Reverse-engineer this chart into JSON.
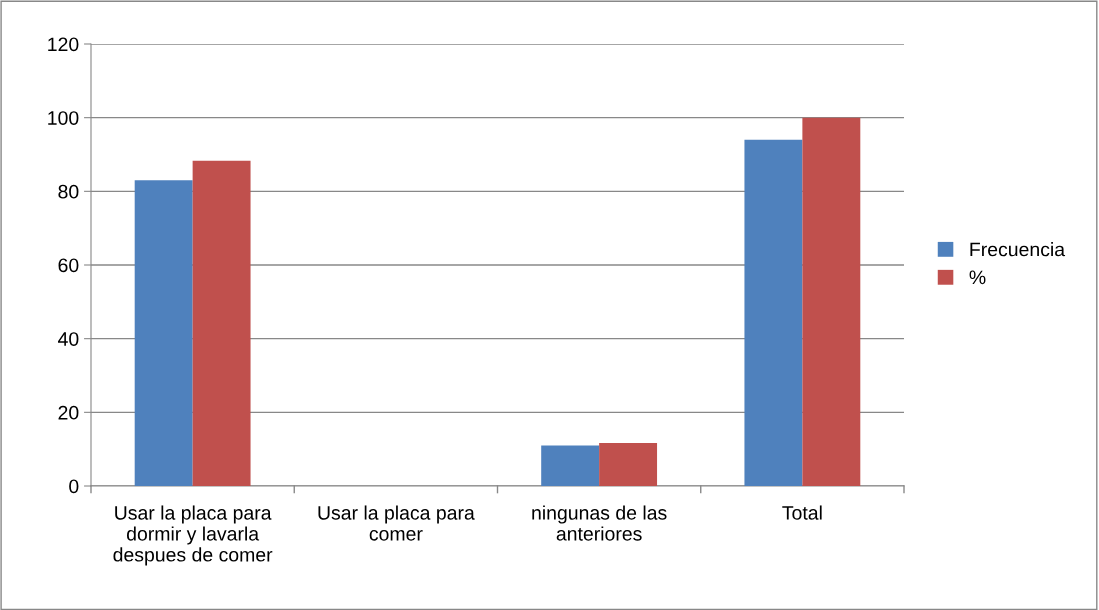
{
  "chart_data": {
    "type": "bar",
    "categories": [
      "Usar la placa para\ndormir y lavarla\ndespues de comer",
      "Usar la placa para\ncomer",
      "ningunas de las\nanteriores",
      "Total"
    ],
    "series": [
      {
        "name": "Frecuencia",
        "color": "#4f81bd",
        "values": [
          83,
          0,
          11,
          94
        ]
      },
      {
        "name": "%",
        "color": "#c0504d",
        "values": [
          88.3,
          0,
          11.7,
          100
        ]
      }
    ],
    "ylim": [
      0,
      120
    ],
    "yticks": [
      0,
      20,
      40,
      60,
      80,
      100,
      120
    ],
    "grid": "y",
    "legend": "right"
  }
}
